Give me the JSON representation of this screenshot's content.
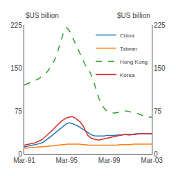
{
  "chart_data": {
    "type": "line",
    "y_label": "$US billion",
    "y2_label": "$US billion",
    "categories": [
      "Mar-91",
      null,
      null,
      null,
      null,
      null,
      null,
      null,
      null,
      null,
      null,
      null,
      null,
      null,
      null,
      null,
      "Mar-95",
      null,
      null,
      null,
      null,
      null,
      null,
      null,
      null,
      null,
      null,
      null,
      null,
      null,
      null,
      null,
      "Mar-99",
      null,
      null,
      null,
      null,
      null,
      null,
      null,
      null,
      null,
      null,
      null,
      null,
      null,
      null,
      null,
      "Mar-03"
    ],
    "series": [
      {
        "name": "China",
        "line_style": "solid",
        "values": [
          12,
          13,
          14,
          15,
          16,
          17,
          18,
          20,
          23,
          26,
          30,
          34,
          38,
          42,
          46,
          50,
          53,
          54,
          53,
          51,
          49,
          46,
          43,
          39,
          36,
          34,
          32,
          31,
          31,
          31,
          31,
          32,
          32,
          32,
          32,
          33,
          33,
          33,
          34,
          34,
          34,
          34,
          35,
          35,
          35,
          35,
          35,
          35,
          35
        ]
      },
      {
        "name": "Taiwan",
        "line_style": "solid",
        "values": [
          10,
          10,
          11,
          11,
          11,
          12,
          12,
          12,
          13,
          13,
          14,
          14,
          15,
          15,
          16,
          16,
          17,
          17,
          17,
          17,
          17,
          17,
          16,
          16,
          15,
          15,
          15,
          15,
          15,
          15,
          15,
          15,
          15,
          15,
          15,
          15,
          16,
          16,
          16,
          16,
          16,
          17,
          17,
          17,
          17,
          17,
          17,
          17,
          17
        ]
      },
      {
        "name": "Hong Kong",
        "line_style": "dashed",
        "values": [
          120,
          122,
          124,
          126,
          128,
          130,
          133,
          136,
          140,
          145,
          152,
          160,
          170,
          185,
          200,
          215,
          220,
          215,
          205,
          195,
          185,
          175,
          165,
          155,
          148,
          140,
          128,
          112,
          98,
          88,
          80,
          75,
          73,
          72,
          71,
          72,
          73,
          74,
          75,
          74,
          73,
          72,
          71,
          70,
          68,
          66,
          65,
          64,
          64
        ]
      },
      {
        "name": "Korea",
        "line_style": "solid",
        "values": [
          15,
          16,
          17,
          18,
          19,
          21,
          23,
          26,
          30,
          34,
          38,
          43,
          48,
          53,
          57,
          60,
          63,
          64,
          65,
          63,
          60,
          56,
          50,
          40,
          32,
          28,
          26,
          25,
          24,
          25,
          26,
          27,
          28,
          29,
          30,
          31,
          32,
          33,
          34,
          33,
          33,
          34,
          34,
          35,
          35,
          35,
          35,
          35,
          35
        ]
      }
    ],
    "ylim": [
      0,
      225
    ],
    "yticks": [
      0,
      75,
      150,
      225
    ],
    "y2lim": [
      0,
      225
    ],
    "y2ticks": [
      0,
      75,
      150,
      225
    ],
    "grid": false,
    "legend": "upper right"
  }
}
